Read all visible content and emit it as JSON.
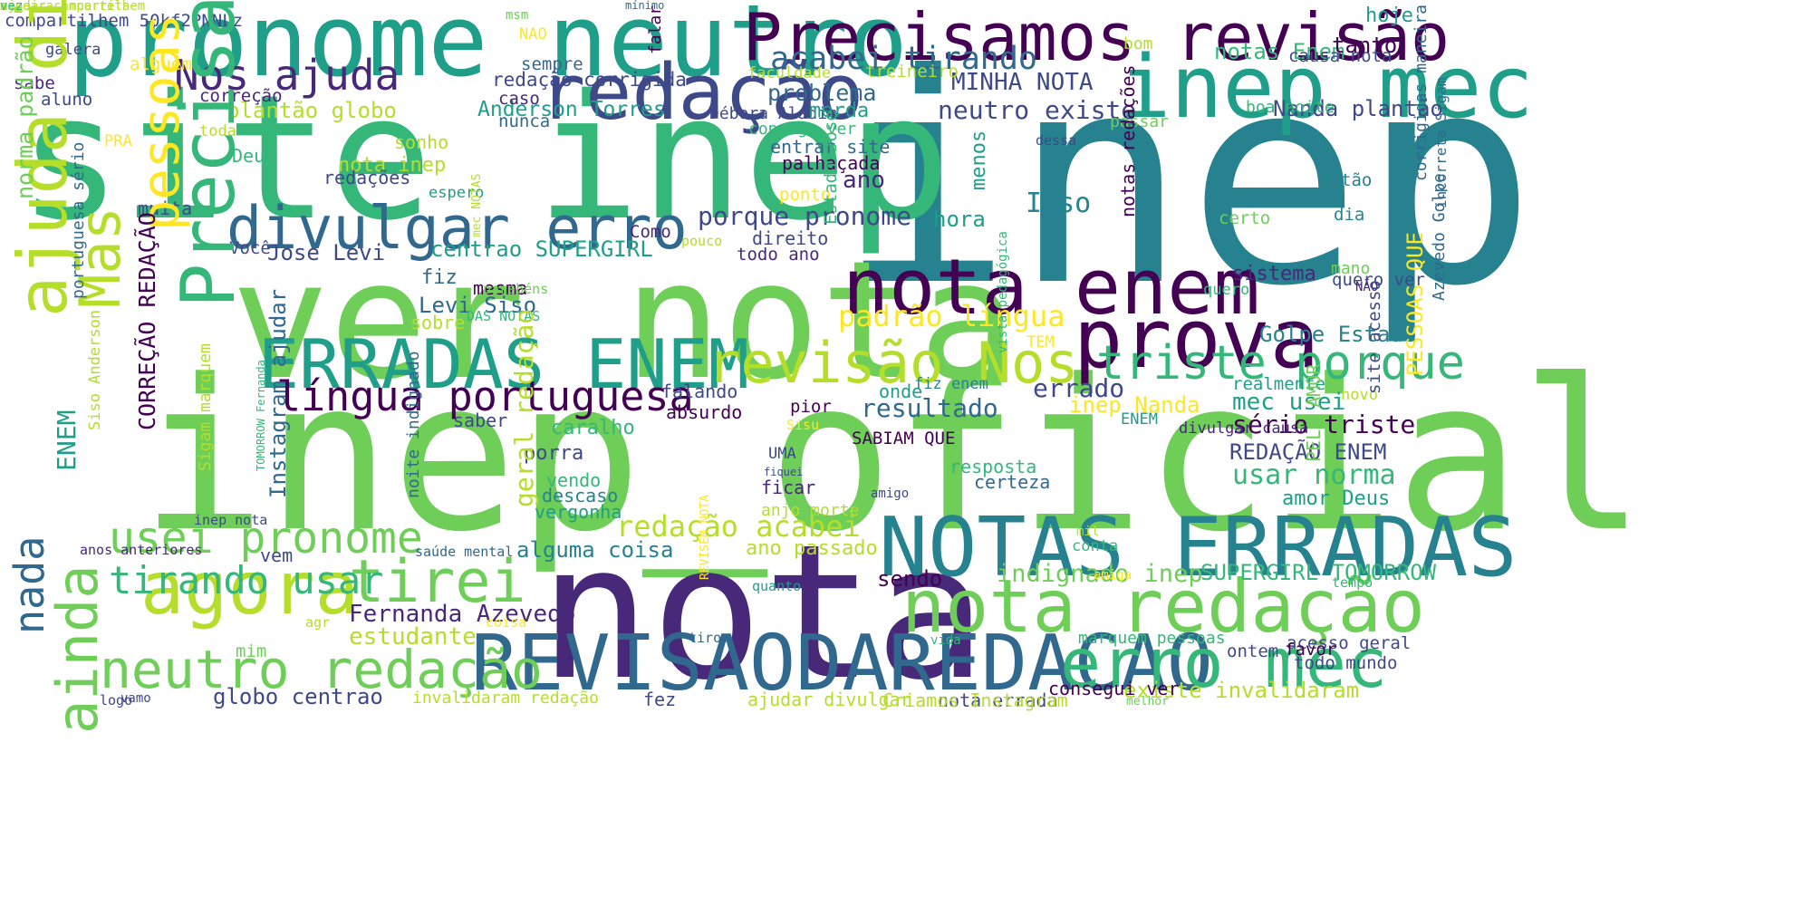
{
  "palette": [
    "#440154",
    "#482878",
    "#3e4989",
    "#31688e",
    "#26828e",
    "#1f9e89",
    "#35b779",
    "#6ece58",
    "#b5de2b",
    "#fde725"
  ],
  "words": [
    {
      "text": "inep",
      "color": "#26828e"
    },
    {
      "text": "inep_oficial",
      "color": "#6ece58"
    },
    {
      "text": "site inep",
      "color": "#35b779"
    },
    {
      "text": "ver nota",
      "color": "#6ece58"
    },
    {
      "text": "nota",
      "color": "#482878"
    },
    {
      "text": "pronome neutro",
      "color": "#1f9e89"
    },
    {
      "text": "Precisamos revisão",
      "color": "#440154"
    },
    {
      "text": "inep mec",
      "color": "#1f9e89"
    },
    {
      "text": "redação",
      "color": "#3e4989"
    },
    {
      "text": "nota enem",
      "color": "#440154"
    },
    {
      "text": "prova",
      "color": "#440154"
    },
    {
      "text": "NOTAS ERRADAS",
      "color": "#26828e"
    },
    {
      "text": "REVISAODAREDACAO",
      "color": "#31688e"
    },
    {
      "text": "nota redação",
      "color": "#6ece58"
    },
    {
      "text": "erro mec",
      "color": "#35b779"
    },
    {
      "text": "ERRADAS ENEM",
      "color": "#1f9e89"
    },
    {
      "text": "revisão Nos",
      "color": "#b5de2b"
    },
    {
      "text": "divulgar erro",
      "color": "#31688e"
    },
    {
      "text": "triste porque",
      "color": "#35b779"
    },
    {
      "text": "língua portuguesa",
      "color": "#440154"
    },
    {
      "text": "agora",
      "color": "#b5de2b"
    },
    {
      "text": "tirei",
      "color": "#6ece58"
    },
    {
      "text": "neutro redação",
      "color": "#6ece58"
    },
    {
      "text": "usei pronome",
      "color": "#6ece58"
    },
    {
      "text": "tirando usar",
      "color": "#35b779"
    },
    {
      "text": "Nos ajuda",
      "color": "#482878"
    },
    {
      "text": "acabei tirando",
      "color": "#31688e"
    },
    {
      "text": "padrão língua",
      "color": "#fde725"
    },
    {
      "text": "redação acabei",
      "color": "#b5de2b"
    },
    {
      "text": "indignado inep",
      "color": "#6ece58"
    },
    {
      "text": "SUPERGIRL TOMORROW",
      "color": "#35b779"
    },
    {
      "text": "porque pronome",
      "color": "#3e4989"
    },
    {
      "text": "centrao SUPERGIRL",
      "color": "#1f9e89"
    },
    {
      "text": "Jose Levi",
      "color": "#3e4989"
    },
    {
      "text": "Levi Siso",
      "color": "#31688e"
    },
    {
      "text": "MINHA NOTA",
      "color": "#3e4989"
    },
    {
      "text": "neutro existe",
      "color": "#3e4989"
    },
    {
      "text": "problema",
      "color": "#31688e"
    },
    {
      "text": "plantão globo",
      "color": "#b5de2b"
    },
    {
      "text": "Anderson Torres",
      "color": "#1f9e89"
    },
    {
      "text": "Débora Aladim",
      "color": "#3e4989"
    },
    {
      "text": "merda",
      "color": "#1f9e89"
    },
    {
      "text": "consigo ver",
      "color": "#35b779"
    },
    {
      "text": "Nanda plantão",
      "color": "#3e4989"
    },
    {
      "text": "notas Enem",
      "color": "#35b779"
    },
    {
      "text": "tanto",
      "color": "#440154"
    },
    {
      "text": "hoje",
      "color": "#1f9e89"
    },
    {
      "text": "causa nota",
      "color": "#3e4989"
    },
    {
      "text": "boa noite",
      "color": "#35b779"
    },
    {
      "text": "passar",
      "color": "#6ece58"
    },
    {
      "text": "resultado",
      "color": "#31688e"
    },
    {
      "text": "sério triste",
      "color": "#440154"
    },
    {
      "text": "REDAÇÃO ENEM",
      "color": "#3e4989"
    },
    {
      "text": "usar norma",
      "color": "#35b779"
    },
    {
      "text": "amor Deus",
      "color": "#1f9e89"
    },
    {
      "text": "Golpe Estado",
      "color": "#26828e"
    },
    {
      "text": "mec usei",
      "color": "#1f9e89"
    },
    {
      "text": "sistema",
      "color": "#482878"
    },
    {
      "text": "errado",
      "color": "#3e4989"
    },
    {
      "text": "inep Nanda",
      "color": "#fde725"
    },
    {
      "text": "Fernanda Azevedo",
      "color": "#482878"
    },
    {
      "text": "estudante",
      "color": "#b5de2b"
    },
    {
      "text": "alguma coisa",
      "color": "#26828e"
    },
    {
      "text": "ano passado",
      "color": "#b5de2b"
    },
    {
      "text": "sendo",
      "color": "#440154"
    },
    {
      "text": "globo centrao",
      "color": "#3e4989"
    },
    {
      "text": "invalidaram redação",
      "color": "#b5de2b"
    },
    {
      "text": "existe invalidaram",
      "color": "#b5de2b"
    },
    {
      "text": "marquem pessoas",
      "color": "#35b779"
    },
    {
      "text": "nota errada",
      "color": "#3e4989"
    },
    {
      "text": "todo mundo",
      "color": "#3e4989"
    },
    {
      "text": "consegui ver",
      "color": "#440154"
    },
    {
      "text": "ajudar divulgar",
      "color": "#b5de2b"
    },
    {
      "text": "caralho",
      "color": "#35b779"
    },
    {
      "text": "porra",
      "color": "#3e4989"
    },
    {
      "text": "descaso",
      "color": "#26828e"
    },
    {
      "text": "vergonha",
      "color": "#1f9e89"
    },
    {
      "text": "vendo",
      "color": "#35b779"
    },
    {
      "text": "absurdo",
      "color": "#440154"
    },
    {
      "text": "falando",
      "color": "#3e4989"
    },
    {
      "text": "saber",
      "color": "#3e4989"
    },
    {
      "text": "nota inep",
      "color": "#b5de2b"
    },
    {
      "text": "redações",
      "color": "#3e4989"
    },
    {
      "text": "sonho",
      "color": "#b5de2b"
    },
    {
      "text": "Deu",
      "color": "#35b779"
    },
    {
      "text": "muita",
      "color": "#3e4989"
    },
    {
      "text": "Você",
      "color": "#3e4989"
    },
    {
      "text": "Como",
      "color": "#482878"
    },
    {
      "text": "fiz",
      "color": "#31688e"
    },
    {
      "text": "mesma",
      "color": "#440154"
    },
    {
      "text": "sobre",
      "color": "#b5de2b"
    },
    {
      "text": "DAS NOTAS",
      "color": "#35b779"
    },
    {
      "text": "parabéns",
      "color": "#6ece58"
    },
    {
      "text": "pouco",
      "color": "#b5de2b"
    },
    {
      "text": "direito",
      "color": "#3e4989"
    },
    {
      "text": "todo ano",
      "color": "#482878"
    },
    {
      "text": "palhaçada",
      "color": "#440154"
    },
    {
      "text": "entrar site",
      "color": "#31688e"
    },
    {
      "text": "ponto",
      "color": "#fde725"
    },
    {
      "text": "ano",
      "color": "#482878"
    },
    {
      "text": "Isso",
      "color": "#26828e"
    },
    {
      "text": "hora",
      "color": "#1f9e89"
    },
    {
      "text": "menos",
      "color": "#1f9e89"
    },
    {
      "text": "certo",
      "color": "#6ece58"
    },
    {
      "text": "dia",
      "color": "#26828e"
    },
    {
      "text": "tão",
      "color": "#26828e"
    },
    {
      "text": "mano",
      "color": "#6ece58"
    },
    {
      "text": "quero ver",
      "color": "#3e4989"
    },
    {
      "text": "quero",
      "color": "#35b779"
    },
    {
      "text": "NÃO",
      "color": "#482878"
    },
    {
      "text": "novo",
      "color": "#b5de2b"
    },
    {
      "text": "realmente",
      "color": "#1f9e89"
    },
    {
      "text": "divulgar causa",
      "color": "#482878"
    },
    {
      "text": "onde",
      "color": "#1f9e89"
    },
    {
      "text": "fiz enem",
      "color": "#26828e"
    },
    {
      "text": "SABIAM QUE",
      "color": "#440154"
    },
    {
      "text": "pior",
      "color": "#440154"
    },
    {
      "text": "Sisu",
      "color": "#fde725"
    },
    {
      "text": "UMA",
      "color": "#3e4989"
    },
    {
      "text": "resposta",
      "color": "#35b779"
    },
    {
      "text": "certeza",
      "color": "#31688e"
    },
    {
      "text": "ficar",
      "color": "#482878"
    },
    {
      "text": "fiquei",
      "color": "#3e4989"
    },
    {
      "text": "anjo morte",
      "color": "#b5de2b"
    },
    {
      "text": "amigo",
      "color": "#3e4989"
    },
    {
      "text": "mil",
      "color": "#b5de2b"
    },
    {
      "text": "conta",
      "color": "#35b779"
    },
    {
      "text": "amiga",
      "color": "#fde725"
    },
    {
      "text": "quanto",
      "color": "#1f9e89"
    },
    {
      "text": "tempo",
      "color": "#35b779"
    },
    {
      "text": "acesso geral",
      "color": "#3e4989"
    },
    {
      "text": "favor",
      "color": "#440154"
    },
    {
      "text": "ontem",
      "color": "#3e4989"
    },
    {
      "text": "vida",
      "color": "#35b779"
    },
    {
      "text": "Criamos Instagram",
      "color": "#b5de2b"
    },
    {
      "text": "melhor",
      "color": "#6ece58"
    },
    {
      "text": "fez",
      "color": "#3e4989"
    },
    {
      "text": "tirou",
      "color": "#31688e"
    },
    {
      "text": "coisa",
      "color": "#fde725"
    },
    {
      "text": "agr",
      "color": "#b5de2b"
    },
    {
      "text": "mim",
      "color": "#6ece58"
    },
    {
      "text": "vamo",
      "color": "#3e4989"
    },
    {
      "text": "logo",
      "color": "#3e4989"
    },
    {
      "text": "vem",
      "color": "#3e4989"
    },
    {
      "text": "saúde mental",
      "color": "#31688e"
    },
    {
      "text": "inep nota",
      "color": "#3e4989"
    },
    {
      "text": "anos anteriores",
      "color": "#482878"
    },
    {
      "text": "compartilhem 50kf2PNNLz",
      "color": "#3e4989"
    },
    {
      "text": "galera",
      "color": "#3e4989"
    },
    {
      "text": "msm",
      "color": "#6ece58"
    },
    {
      "text": "mínimo",
      "color": "#31688e"
    },
    {
      "text": "NAO",
      "color": "#fde725"
    },
    {
      "text": "alguém",
      "color": "#fde725"
    },
    {
      "text": "sempre",
      "color": "#31688e"
    },
    {
      "text": "sabe",
      "color": "#482878"
    },
    {
      "text": "redação corrigida",
      "color": "#3e4989"
    },
    {
      "text": "aluno",
      "color": "#3e4989"
    },
    {
      "text": "correção",
      "color": "#482878"
    },
    {
      "text": "caso",
      "color": "#482878"
    },
    {
      "text": "nunca",
      "color": "#31688e"
    },
    {
      "text": "toda",
      "color": "#b5de2b"
    },
    {
      "text": "PRA",
      "color": "#fde725"
    },
    {
      "text": "espero",
      "color": "#1f9e89"
    },
    {
      "text": "faculdade",
      "color": "#b5de2b"
    },
    {
      "text": "treineiro",
      "color": "#b5de2b"
    },
    {
      "text": "falar",
      "color": "#440154"
    },
    {
      "text": "bom",
      "color": "#b5de2b"
    },
    {
      "text": "dessa",
      "color": "#3e4989"
    },
    {
      "text": "ENEM",
      "color": "#1f9e89"
    },
    {
      "text": "TEM",
      "color": "#fde725"
    },
    {
      "text": "pessoas ajudar",
      "color": "#fde725"
    },
    {
      "text": "Mas",
      "color": "#b5de2b"
    },
    {
      "text": "ajuda divulgar",
      "color": "#b5de2b"
    },
    {
      "text": "Precisamos",
      "color": "#35b779"
    },
    {
      "text": "ainda",
      "color": "#6ece58"
    },
    {
      "text": "nada",
      "color": "#31688e"
    },
    {
      "text": "ENEM",
      "color": "#1f9e89"
    },
    {
      "text": "norma padrão",
      "color": "#6ece58"
    },
    {
      "text": "portuguesa sério",
      "color": "#31688e"
    },
    {
      "text": "Siso Anderson",
      "color": "#b5de2b"
    },
    {
      "text": "CORREÇÃO REDAÇÃO",
      "color": "#440154"
    },
    {
      "text": "Sigam marquem",
      "color": "#b5de2b"
    },
    {
      "text": "Instagram ajudar",
      "color": "#31688e"
    },
    {
      "text": "TOMORROW Fernanda",
      "color": "#35b779"
    },
    {
      "text": "noite indignado",
      "color": "#31688e"
    },
    {
      "text": "geral redação",
      "color": "#b5de2b"
    },
    {
      "text": "REVISEM NOTA",
      "color": "#fde725"
    },
    {
      "text": "Estado Jose",
      "color": "#35b779"
    },
    {
      "text": "mec NOTAS",
      "color": "#b5de2b"
    },
    {
      "text": "vista pedagógica",
      "color": "#35b779"
    },
    {
      "text": "PELO AMOR",
      "color": "#6ece58"
    },
    {
      "text": "notas redações",
      "color": "#440154"
    },
    {
      "text": "corrigidas maneira",
      "color": "#31688e"
    },
    {
      "text": "PESSOAS QUE",
      "color": "#fde725"
    },
    {
      "text": "incorreta Sigam",
      "color": "#31688e"
    },
    {
      "text": "Azevedo Golpe",
      "color": "#31688e"
    },
    {
      "text": "site acesso",
      "color": "#3e4989"
    },
    {
      "text": "ajudar compartilhem",
      "color": "#b5de2b"
    },
    {
      "text": "maneira incorreta",
      "color": "#b5de2b"
    },
    {
      "text": "vez",
      "color": "#35b779"
    }
  ]
}
